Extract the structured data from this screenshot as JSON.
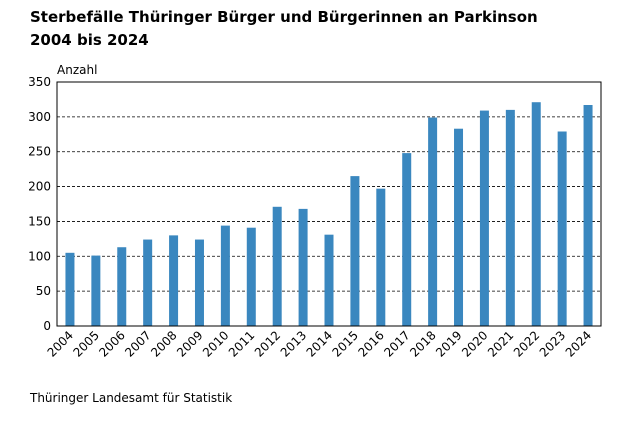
{
  "chart_data": {
    "type": "bar",
    "title": "Sterbefälle Thüringer Bürger und Bürgerinnen an Parkinson",
    "subtitle": "2004 bis 2024",
    "y_label": "Anzahl",
    "source": "Thüringer Landesamt für Statistik",
    "categories": [
      "2004",
      "2005",
      "2006",
      "2007",
      "2008",
      "2009",
      "2010",
      "2011",
      "2012",
      "2013",
      "2014",
      "2015",
      "2016",
      "2017",
      "2018",
      "2019",
      "2020",
      "2021",
      "2022",
      "2023",
      "2024"
    ],
    "values": [
      105,
      101,
      113,
      124,
      130,
      124,
      144,
      141,
      171,
      168,
      131,
      215,
      197,
      248,
      299,
      283,
      309,
      310,
      321,
      279,
      317
    ],
    "color": "#3a87bf",
    "ylim": [
      0,
      350
    ],
    "yticks": [
      0,
      50,
      100,
      150,
      200,
      250,
      300,
      350
    ],
    "grid": true
  }
}
